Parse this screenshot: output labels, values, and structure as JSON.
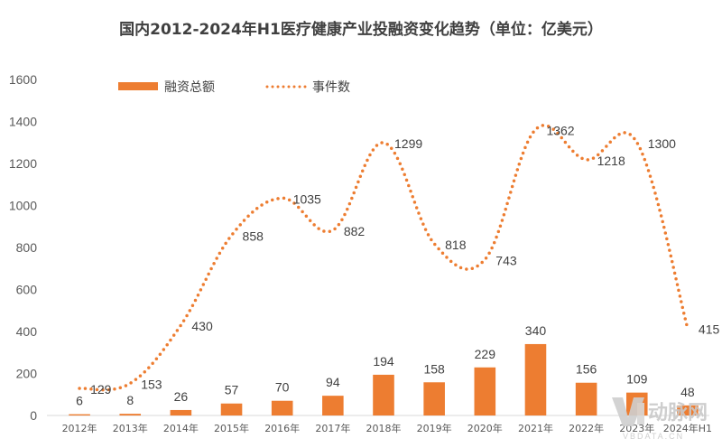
{
  "chart_data": {
    "type": "bar",
    "title": "国内2012-2024年H1医疗健康产业投融资变化趋势（单位：亿美元）",
    "categories": [
      "2012年",
      "2013年",
      "2014年",
      "2015年",
      "2016年",
      "2017年",
      "2018年",
      "2019年",
      "2020年",
      "2021年",
      "2022年",
      "2023年",
      "2024年H1"
    ],
    "series": [
      {
        "name": "融资总额",
        "type": "bar",
        "color": "#ED7D31",
        "values": [
          6,
          8,
          26,
          57,
          70,
          94,
          194,
          158,
          229,
          340,
          156,
          109,
          48
        ]
      },
      {
        "name": "事件数",
        "type": "line",
        "style": "dotted",
        "color": "#ED7D31",
        "values": [
          129,
          153,
          430,
          858,
          1035,
          882,
          1299,
          818,
          743,
          1362,
          1218,
          1300,
          415
        ]
      }
    ],
    "yticks": [
      "0",
      "200",
      "400",
      "600",
      "800",
      "1000",
      "1200",
      "1400",
      "1600"
    ],
    "ylim": [
      0,
      1600
    ],
    "grid": false,
    "legend": "top-left"
  },
  "watermark": {
    "text": "动脉网",
    "sub": "VBDATA.CN"
  }
}
